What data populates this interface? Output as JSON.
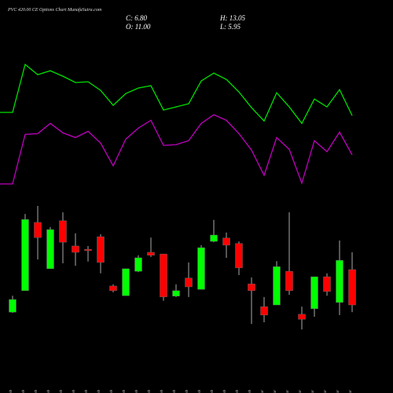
{
  "chart_data": {
    "type": "candlestick",
    "title": "PVC 420.00 CE Options  Chart MunafaSutra.com",
    "header": [
      "C: 6.80",
      "O: 11.00",
      "H: 13.05",
      "L: 5.95"
    ],
    "categories": [
      "03 Feb",
      "04 Feb",
      "05 Feb",
      "06 Feb",
      "07 Feb",
      "10 Feb",
      "11 Feb",
      "12 Feb",
      "13 Feb",
      "14 Feb",
      "17 Feb",
      "18 Feb",
      "19 Feb",
      "20 Feb",
      "21 Feb",
      "24 Feb",
      "25 Feb",
      "26 Feb",
      "27 Feb",
      "28 Feb",
      "03 Mar",
      "04 Mar",
      "05 Mar",
      "06 Mar",
      "07 Mar",
      "10 Mar",
      "11 Mar",
      "12 Mar"
    ],
    "open": [
      5.95,
      8.5,
      16.6,
      11.1,
      16.8,
      13.8,
      13.4,
      14.9,
      9.05,
      7.9,
      10.8,
      13.05,
      12.85,
      7.85,
      10.0,
      8.65,
      14.35,
      14.75,
      14.1,
      9.3,
      6.6,
      6.8,
      10.8,
      5.7,
      6.35,
      10.15,
      7.1,
      11.0
    ],
    "high": [
      7.9,
      17.6,
      18.55,
      16.05,
      17.8,
      15.3,
      13.8,
      15.2,
      9.25,
      11.1,
      12.7,
      14.8,
      12.85,
      9.25,
      11.85,
      13.9,
      16.9,
      15.4,
      14.35,
      10.05,
      7.75,
      12.0,
      17.8,
      6.6,
      10.15,
      10.55,
      14.45,
      13.05
    ],
    "low": [
      5.85,
      8.5,
      12.2,
      11.1,
      11.75,
      11.45,
      11.95,
      10.55,
      8.3,
      7.9,
      10.7,
      12.5,
      7.3,
      7.75,
      7.75,
      8.65,
      14.25,
      12.4,
      10.35,
      4.55,
      4.75,
      6.8,
      8.0,
      3.9,
      5.4,
      7.9,
      5.6,
      5.95
    ],
    "close": [
      7.45,
      16.95,
      14.8,
      15.75,
      14.25,
      13.05,
      13.25,
      11.85,
      8.5,
      11.1,
      12.4,
      12.7,
      7.75,
      8.5,
      8.95,
      13.6,
      15.1,
      13.9,
      11.2,
      8.5,
      5.6,
      11.35,
      8.5,
      5.1,
      10.15,
      8.4,
      12.1,
      6.8
    ],
    "up_color": "#00ff00",
    "down_color": "#ff0000",
    "ylim": [
      -3.65,
      43.0
    ],
    "lines": [
      {
        "color": "#00e000",
        "values": [
          357,
          418,
          405,
          410,
          403,
          395,
          396,
          385,
          366,
          381,
          388,
          391,
          360,
          364,
          368,
          397,
          407,
          399,
          383,
          363,
          346,
          382,
          364,
          343,
          374,
          364,
          386,
          353
        ]
      },
      {
        "color": "#c000c0",
        "values": [
          266,
          329,
          330,
          343,
          331,
          325,
          333,
          318,
          289,
          323,
          337,
          347,
          315,
          316,
          321,
          343,
          354,
          347,
          330,
          309,
          277,
          325,
          310,
          267,
          321,
          307,
          332,
          303
        ]
      }
    ],
    "line_ylim": [
      0,
      500
    ]
  }
}
